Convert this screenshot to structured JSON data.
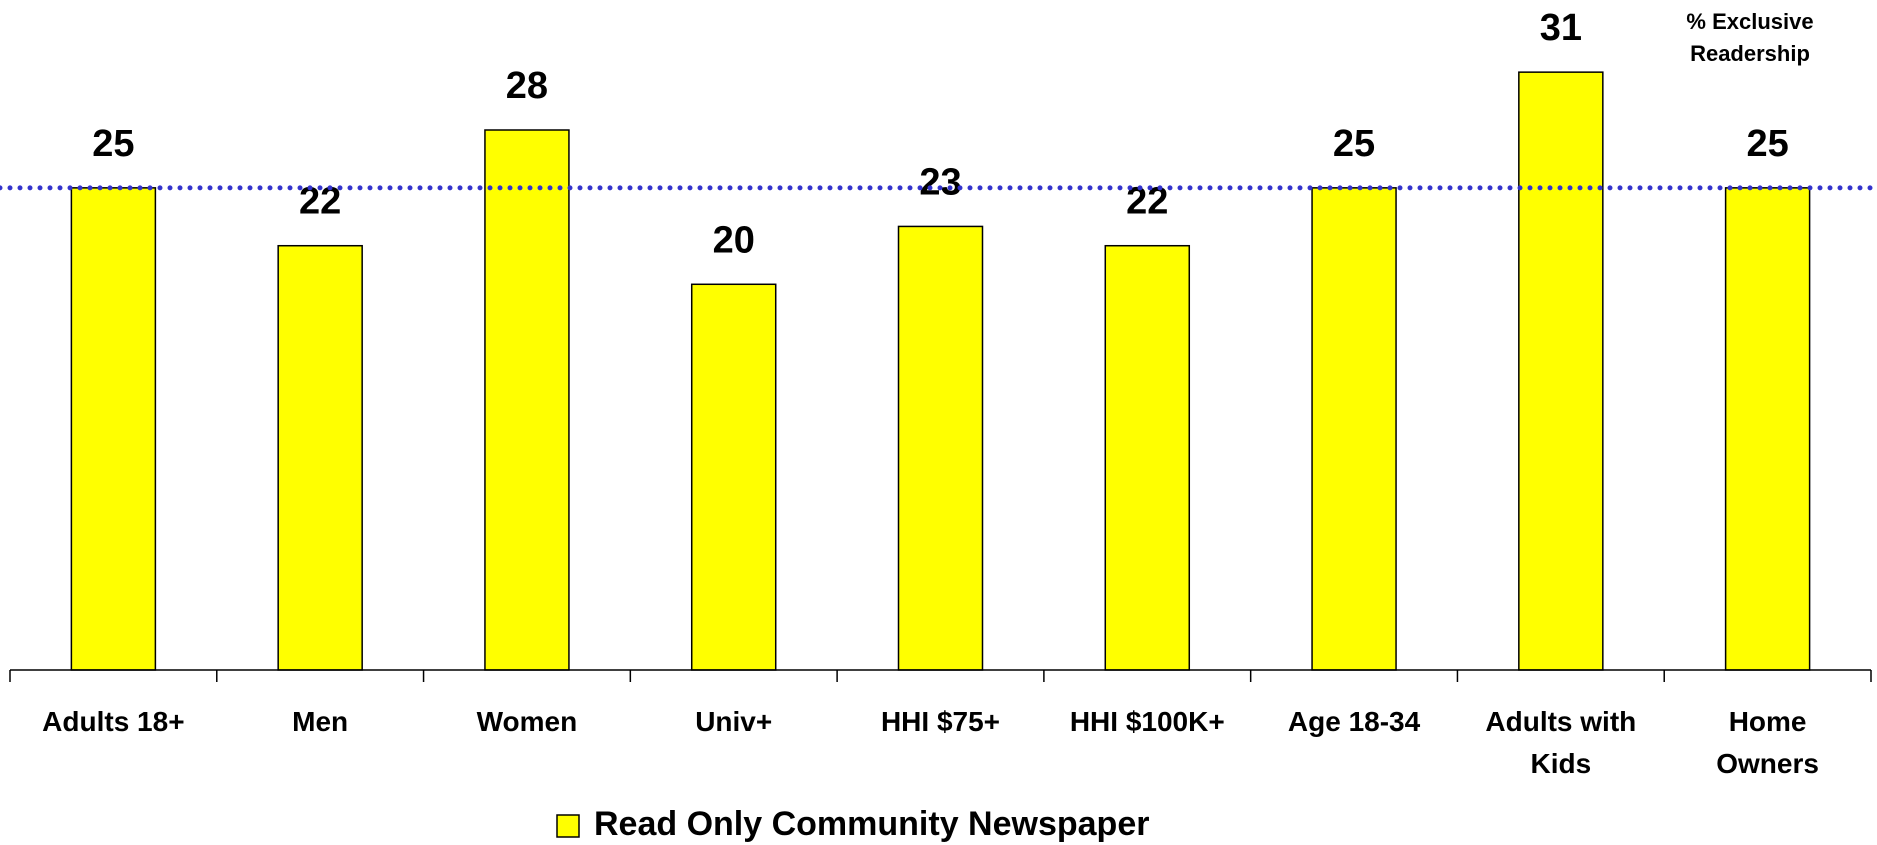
{
  "chart_data": {
    "type": "bar",
    "annotation": "% Exclusive Readership",
    "categories": [
      "Adults 18+",
      "Men",
      "Women",
      "Univ+",
      "HHI $75+",
      "HHI $100K+",
      "Age 18-34",
      "Adults with Kids",
      "Home Owners"
    ],
    "series": [
      {
        "name": "Read Only Community Newspaper",
        "color": "#ffff00",
        "values": [
          25,
          22,
          28,
          20,
          23,
          22,
          25,
          31,
          25
        ]
      }
    ],
    "ylim": [
      0,
      35
    ],
    "reference_line": {
      "value": 25,
      "color": "#3333cc"
    },
    "data_labels": true,
    "legend": "bottom"
  }
}
